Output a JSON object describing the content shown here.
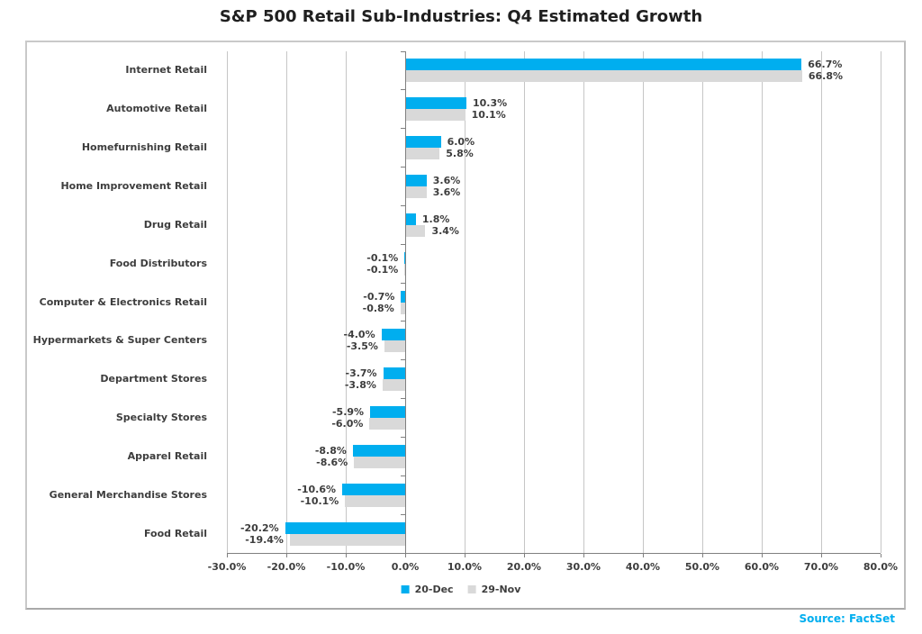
{
  "title": "S&P 500 Retail Sub-Industries: Q4 Estimated Growth",
  "source_note": "Source: FactSet",
  "colors": {
    "accent_blue": "#00AEEF",
    "series_gray": "#D9D9D9",
    "gridline": "#C6C6C6",
    "axis": "#808080",
    "text": "#3D3D3D",
    "source_text": "#00AEEF"
  },
  "chart_data": {
    "type": "bar",
    "orientation": "horizontal",
    "title": "S&P 500 Retail Sub-Industries: Q4 Estimated Growth",
    "categories": [
      "Internet Retail",
      "Automotive Retail",
      "Homefurnishing Retail",
      "Home Improvement Retail",
      "Drug Retail",
      "Food Distributors",
      "Computer & Electronics Retail",
      "Hypermarkets & Super Centers",
      "Department Stores",
      "Specialty Stores",
      "Apparel Retail",
      "General Merchandise Stores",
      "Food Retail"
    ],
    "series": [
      {
        "name": "20-Dec",
        "color": "#00AEEF",
        "values": [
          66.7,
          10.3,
          6.0,
          3.6,
          1.8,
          -0.1,
          -0.7,
          -4.0,
          -3.7,
          -5.9,
          -8.8,
          -10.6,
          -20.2
        ]
      },
      {
        "name": "29-Nov",
        "color": "#D9D9D9",
        "values": [
          66.8,
          10.1,
          5.8,
          3.6,
          3.4,
          -0.1,
          -0.8,
          -3.5,
          -3.8,
          -6.0,
          -8.6,
          -10.1,
          -19.4
        ]
      }
    ],
    "xlim": [
      -30,
      80
    ],
    "xticks": [
      -30,
      -20,
      -10,
      0,
      10,
      20,
      30,
      40,
      50,
      60,
      70,
      80
    ],
    "tick_suffix": "%",
    "value_label_suffix": "%",
    "grid": true,
    "legend_position": "bottom"
  }
}
